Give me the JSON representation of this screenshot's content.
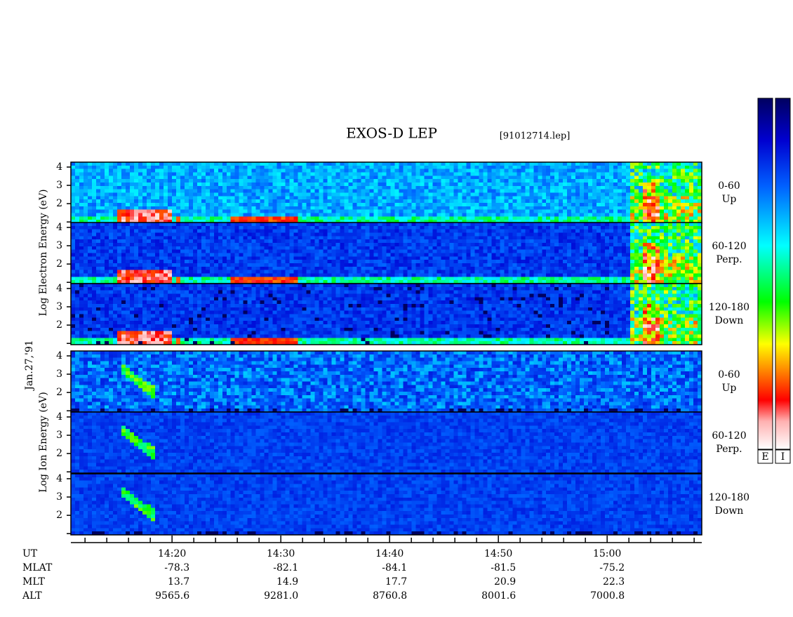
{
  "chart_data": {
    "type": "spectrogram",
    "title": "EXOS-D LEP",
    "subtitle": "[91012714.lep]",
    "date_label": "Jan.27,'91",
    "xlim": [
      10.7,
      68.7
    ],
    "xticks": [
      {
        "value": 20,
        "label": "14:20"
      },
      {
        "value": 30,
        "label": "14:30"
      },
      {
        "value": 40,
        "label": "14:40"
      },
      {
        "value": 50,
        "label": "14:50"
      },
      {
        "value": 60,
        "label": "15:00"
      }
    ],
    "xminor_ticks": [
      12,
      14,
      16,
      18,
      22,
      24,
      26,
      28,
      32,
      34,
      36,
      38,
      42,
      44,
      46,
      48,
      52,
      54,
      56,
      58,
      62,
      64,
      66,
      68
    ],
    "ylim": [
      0.97,
      4.23
    ],
    "yticks": [
      {
        "value": 1,
        "label": null
      },
      2,
      3,
      4
    ],
    "groups": [
      {
        "ylabel": "Log Electron Energy (eV)",
        "species": "electron",
        "panels": [
          {
            "label": "0-60",
            "sublabel": "Up"
          },
          {
            "label": "60-120",
            "sublabel": "Perp."
          },
          {
            "label": "120-180",
            "sublabel": "Down"
          }
        ]
      },
      {
        "ylabel": "Log Ion Energy (eV)",
        "species": "ion",
        "panels": [
          {
            "label": "0-60",
            "sublabel": "Up"
          },
          {
            "label": "60-120",
            "sublabel": "Perp."
          },
          {
            "label": "120-180",
            "sublabel": "Down"
          }
        ]
      }
    ],
    "ephemeris": [
      {
        "name": "UT",
        "values": []
      },
      {
        "name": "MLAT",
        "values": [
          "-78.3",
          "-82.1",
          "-84.1",
          "-81.5",
          "-75.2"
        ]
      },
      {
        "name": "MLT",
        "values": [
          "13.7",
          "14.9",
          "17.7",
          "20.9",
          "22.3"
        ]
      },
      {
        "name": "ALT",
        "values": [
          "9565.6",
          "9281.0",
          "8760.8",
          "8001.6",
          "7000.8"
        ]
      }
    ],
    "colorbars": [
      "E",
      "I"
    ]
  }
}
